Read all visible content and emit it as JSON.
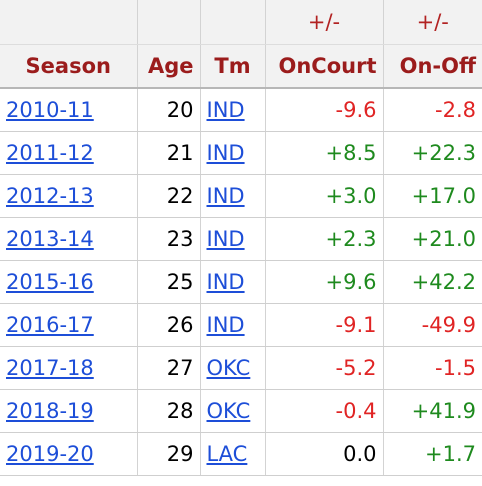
{
  "colors": {
    "header_text": "#9b1c1c",
    "link": "#1d4ed8",
    "positive": "#1e8a1e",
    "negative": "#e02424",
    "neutral": "#000000",
    "header_bg": "#f2f2f2"
  },
  "overheader": {
    "oncourt": "+/-",
    "onoff": "+/-"
  },
  "columns": {
    "season": "Season",
    "age": "Age",
    "team": "Tm",
    "oncourt": "OnCourt",
    "onoff": "On-Off"
  },
  "rows": [
    {
      "season": "2010-11",
      "age": "20",
      "team": "IND",
      "oncourt": "-9.6",
      "oncourt_sign": "neg",
      "onoff": "-2.8",
      "onoff_sign": "neg"
    },
    {
      "season": "2011-12",
      "age": "21",
      "team": "IND",
      "oncourt": "+8.5",
      "oncourt_sign": "pos",
      "onoff": "+22.3",
      "onoff_sign": "pos"
    },
    {
      "season": "2012-13",
      "age": "22",
      "team": "IND",
      "oncourt": "+3.0",
      "oncourt_sign": "pos",
      "onoff": "+17.0",
      "onoff_sign": "pos"
    },
    {
      "season": "2013-14",
      "age": "23",
      "team": "IND",
      "oncourt": "+2.3",
      "oncourt_sign": "pos",
      "onoff": "+21.0",
      "onoff_sign": "pos"
    },
    {
      "season": "2015-16",
      "age": "25",
      "team": "IND",
      "oncourt": "+9.6",
      "oncourt_sign": "pos",
      "onoff": "+42.2",
      "onoff_sign": "pos"
    },
    {
      "season": "2016-17",
      "age": "26",
      "team": "IND",
      "oncourt": "-9.1",
      "oncourt_sign": "neg",
      "onoff": "-49.9",
      "onoff_sign": "neg"
    },
    {
      "season": "2017-18",
      "age": "27",
      "team": "OKC",
      "oncourt": "-5.2",
      "oncourt_sign": "neg",
      "onoff": "-1.5",
      "onoff_sign": "neg"
    },
    {
      "season": "2018-19",
      "age": "28",
      "team": "OKC",
      "oncourt": "-0.4",
      "oncourt_sign": "neg",
      "onoff": "+41.9",
      "onoff_sign": "pos"
    },
    {
      "season": "2019-20",
      "age": "29",
      "team": "LAC",
      "oncourt": "0.0",
      "oncourt_sign": "zero",
      "onoff": "+1.7",
      "onoff_sign": "pos"
    }
  ]
}
